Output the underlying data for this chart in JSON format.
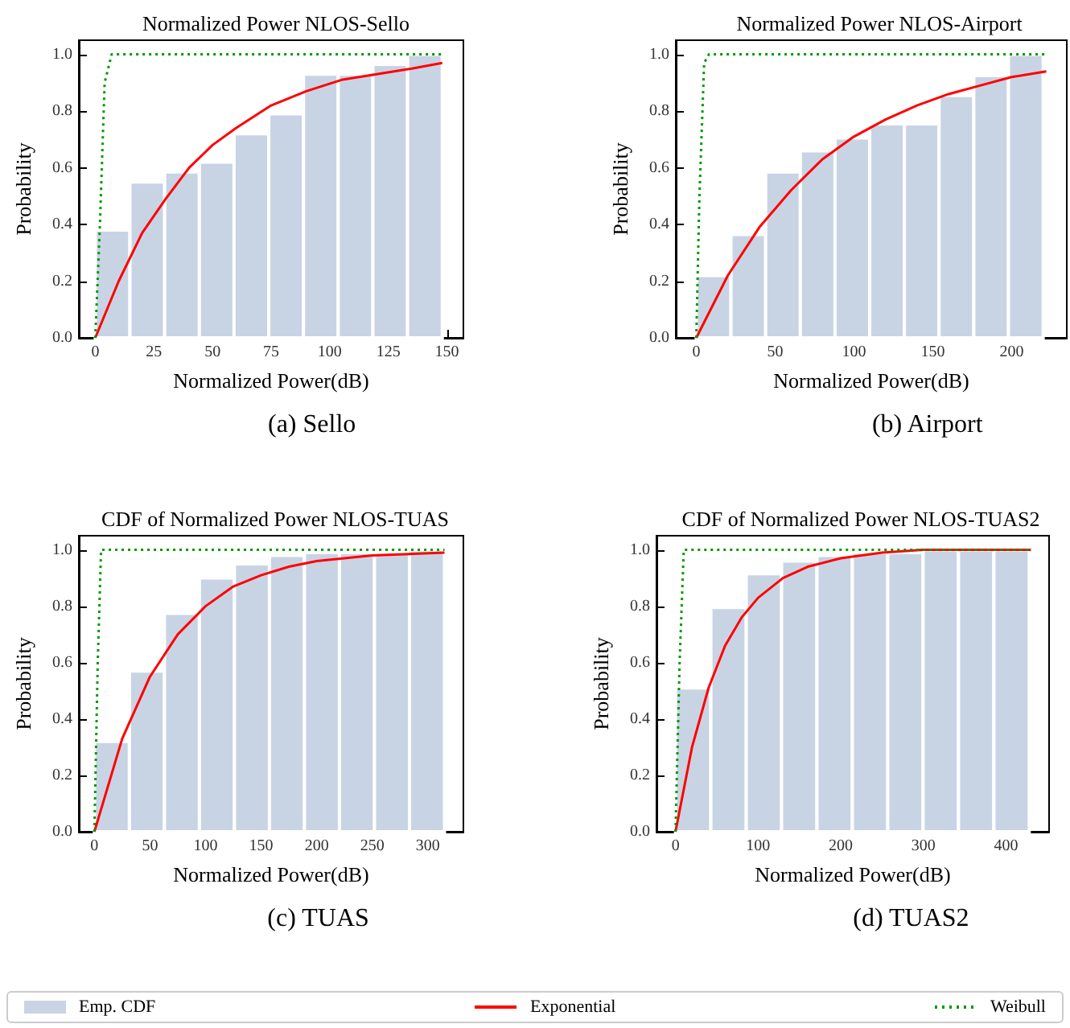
{
  "chart_data": [
    {
      "type": "histogram",
      "title": "Normalized Power NLOS-Sello",
      "xlabel": "Normalized Power(dB)",
      "ylabel": "Probability",
      "annotations": [
        "(a) Sello"
      ],
      "xlim": [
        -7,
        157
      ],
      "xticks": [
        0,
        25,
        50,
        75,
        100,
        125,
        150
      ],
      "ylim": [
        0,
        1.05
      ],
      "yticks": [
        {
          "value": 0,
          "label": "0.0"
        },
        {
          "value": 0.2,
          "label": "0.2"
        },
        {
          "value": 0.4,
          "label": "0.4"
        },
        {
          "value": 0.6,
          "label": "0.6"
        },
        {
          "value": 0.8,
          "label": "0.8"
        },
        {
          "value": 1,
          "label": "1.0"
        }
      ],
      "series": [
        {
          "color": "#c8d4e4",
          "bins": [
            0,
            14.8,
            29.6,
            44.4,
            59.2,
            74,
            88.8,
            103.6,
            118.4,
            133.2,
            148
          ],
          "values": [
            0.38,
            0.55,
            0.585,
            0.62,
            0.72,
            0.79,
            0.93,
            0.93,
            0.965,
            1.0
          ]
        },
        {
          "type": "line",
          "color": "#ff0000",
          "line_style": "solid",
          "x": [
            0,
            10,
            20,
            30,
            40,
            50,
            60,
            75,
            90,
            105,
            120,
            135,
            148
          ],
          "values": [
            0,
            0.2,
            0.37,
            0.49,
            0.6,
            0.68,
            0.74,
            0.82,
            0.87,
            0.91,
            0.93,
            0.95,
            0.97
          ]
        },
        {
          "type": "line",
          "color": "#009900",
          "line_style": "dotted",
          "x": [
            0,
            2,
            4,
            7,
            148
          ],
          "values": [
            0,
            0.4,
            0.9,
            1.0,
            1.0
          ]
        }
      ]
    },
    {
      "type": "histogram",
      "title": "Normalized Power NLOS-Airport",
      "xlabel": "Normalized Power(dB)",
      "ylabel": "Probability",
      "annotations": [
        "(b) Airport"
      ],
      "xlim": [
        -13,
        235
      ],
      "xticks": [
        0,
        50,
        100,
        150,
        200
      ],
      "ylim": [
        0,
        1.05
      ],
      "yticks": [
        {
          "value": 0,
          "label": "0.0"
        },
        {
          "value": 0.2,
          "label": "0.2"
        },
        {
          "value": 0.4,
          "label": "0.4"
        },
        {
          "value": 0.6,
          "label": "0.6"
        },
        {
          "value": 0.8,
          "label": "0.8"
        },
        {
          "value": 1,
          "label": "1.0"
        }
      ],
      "series": [
        {
          "color": "#c8d4e4",
          "bins": [
            0,
            22,
            44,
            66,
            88,
            110,
            132,
            154,
            176,
            198,
            220
          ],
          "values": [
            0.22,
            0.365,
            0.585,
            0.66,
            0.705,
            0.755,
            0.755,
            0.855,
            0.925,
            1.0
          ]
        },
        {
          "type": "line",
          "color": "#ff0000",
          "line_style": "solid",
          "x": [
            0,
            20,
            40,
            60,
            80,
            100,
            120,
            140,
            160,
            180,
            200,
            222
          ],
          "values": [
            0,
            0.22,
            0.39,
            0.52,
            0.63,
            0.71,
            0.77,
            0.82,
            0.86,
            0.89,
            0.92,
            0.94
          ]
        },
        {
          "type": "line",
          "color": "#009900",
          "line_style": "dotted",
          "x": [
            0,
            2,
            5,
            8,
            222
          ],
          "values": [
            0,
            0.5,
            0.97,
            1.0,
            1.0
          ]
        }
      ]
    },
    {
      "type": "histogram",
      "title": "CDF of Normalized Power NLOS-TUAS",
      "xlabel": "Normalized Power(dB)",
      "ylabel": "Probability",
      "annotations": [
        "(c) TUAS"
      ],
      "xlim": [
        -14,
        332
      ],
      "xticks": [
        0,
        50,
        100,
        150,
        200,
        250,
        300
      ],
      "ylim": [
        0,
        1.05
      ],
      "yticks": [
        {
          "value": 0,
          "label": "0.0"
        },
        {
          "value": 0.2,
          "label": "0.2"
        },
        {
          "value": 0.4,
          "label": "0.4"
        },
        {
          "value": 0.6,
          "label": "0.6"
        },
        {
          "value": 0.8,
          "label": "0.8"
        },
        {
          "value": 1,
          "label": "1.0"
        }
      ],
      "series": [
        {
          "color": "#c8d4e4",
          "bins": [
            0,
            31.5,
            63,
            94.5,
            126,
            157.5,
            189,
            220.5,
            252,
            283.5,
            315
          ],
          "values": [
            0.32,
            0.57,
            0.775,
            0.9,
            0.95,
            0.98,
            0.99,
            0.99,
            0.99,
            1.0
          ]
        },
        {
          "type": "line",
          "color": "#ff0000",
          "line_style": "solid",
          "x": [
            0,
            25,
            50,
            75,
            100,
            125,
            150,
            175,
            200,
            250,
            315
          ],
          "values": [
            0,
            0.33,
            0.55,
            0.7,
            0.8,
            0.87,
            0.91,
            0.94,
            0.96,
            0.98,
            0.99
          ]
        },
        {
          "type": "line",
          "color": "#009900",
          "line_style": "dotted",
          "x": [
            0,
            3,
            6,
            315
          ],
          "values": [
            0,
            0.6,
            1.0,
            1.0
          ]
        }
      ]
    },
    {
      "type": "histogram",
      "title": "CDF of Normalized Power NLOS-TUAS2",
      "xlabel": "Normalized Power(dB)",
      "ylabel": "Probability",
      "annotations": [
        "(d) TUAS2"
      ],
      "legend": "bottom",
      "xlim": [
        -23,
        452
      ],
      "xticks": [
        0,
        100,
        200,
        300,
        400
      ],
      "ylim": [
        0,
        1.05
      ],
      "yticks": [
        {
          "value": 0,
          "label": "0.0"
        },
        {
          "value": 0.2,
          "label": "0.2"
        },
        {
          "value": 0.4,
          "label": "0.4"
        },
        {
          "value": 0.6,
          "label": "0.6"
        },
        {
          "value": 0.8,
          "label": "0.8"
        },
        {
          "value": 1,
          "label": "1.0"
        }
      ],
      "series": [
        {
          "name": "Emp. CDF",
          "color": "#c8d4e4",
          "bins": [
            0,
            42.8,
            85.6,
            128.4,
            171.2,
            214,
            256.8,
            299.6,
            342.4,
            385.2,
            428
          ],
          "values": [
            0.51,
            0.795,
            0.915,
            0.96,
            0.98,
            0.99,
            0.99,
            1.0,
            1.0,
            1.0
          ]
        },
        {
          "name": "Exponential",
          "type": "line",
          "color": "#ff0000",
          "line_style": "solid",
          "x": [
            0,
            20,
            40,
            60,
            80,
            100,
            130,
            160,
            200,
            250,
            300,
            430
          ],
          "values": [
            0,
            0.3,
            0.51,
            0.66,
            0.76,
            0.83,
            0.9,
            0.94,
            0.97,
            0.99,
            1.0,
            1.0
          ]
        },
        {
          "name": "Weibull",
          "type": "line",
          "color": "#009900",
          "line_style": "dotted",
          "x": [
            0,
            5,
            10,
            430
          ],
          "values": [
            0,
            0.6,
            1.0,
            1.0
          ]
        }
      ]
    }
  ]
}
